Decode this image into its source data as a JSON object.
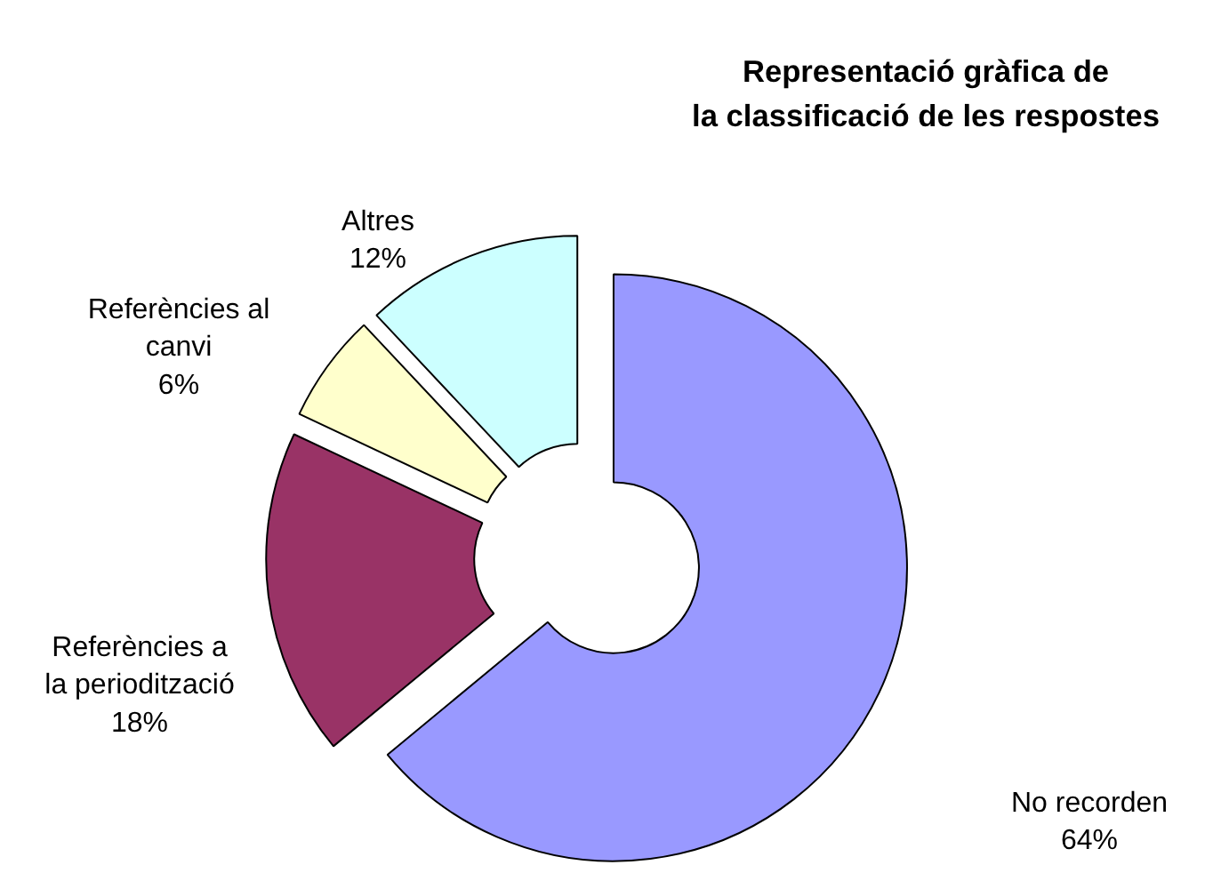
{
  "chart_data": {
    "type": "donut",
    "title": "Representació gràfica de\nla classificació de les respostes",
    "categories": [
      "No recorden",
      "Referències a\nla periodització",
      "Referències al\ncanvi",
      "Altres"
    ],
    "values": [
      64,
      18,
      6,
      12
    ],
    "colors": [
      "#9999ff",
      "#993366",
      "#ffffcc",
      "#ccffff"
    ],
    "value_labels": [
      "64%",
      "18%",
      "6%",
      "12%"
    ]
  }
}
